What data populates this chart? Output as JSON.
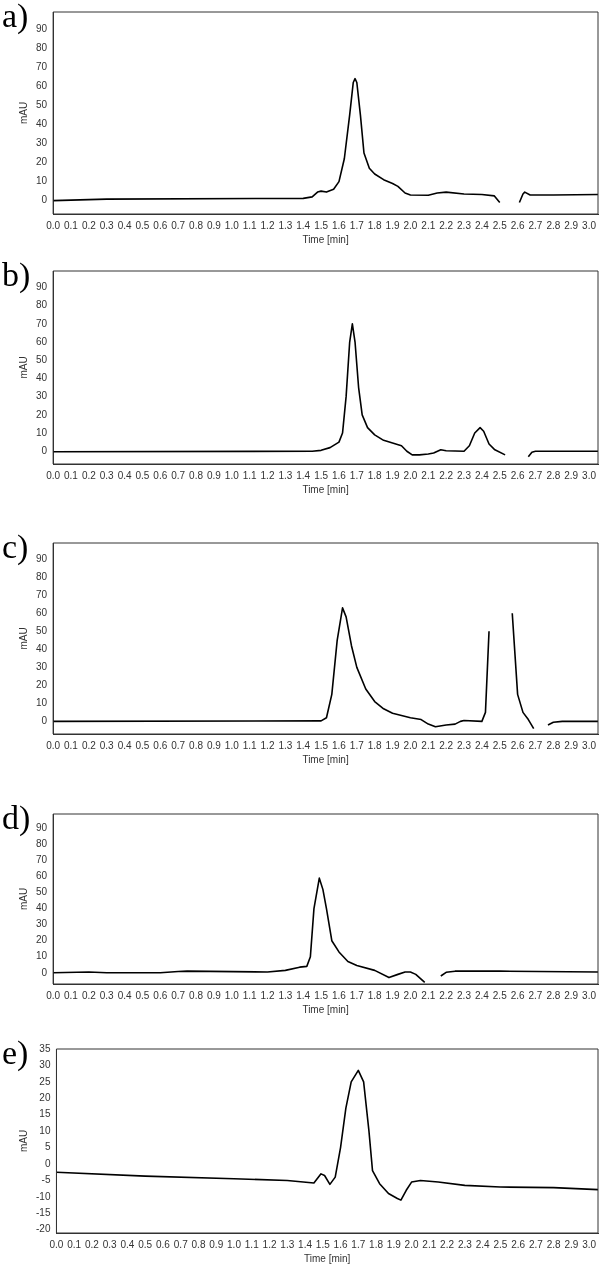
{
  "chart_data": [
    {
      "type": "line",
      "title": "a)",
      "xlabel": "Time [min]",
      "ylabel": "mAU",
      "xlim": [
        0,
        3.05
      ],
      "ylim": [
        -7,
        99
      ],
      "xticks": [
        {
          "value": 0,
          "label": "0.0"
        },
        0.1,
        0.2,
        0.3,
        0.4,
        0.5,
        0.6,
        0.7,
        0.8,
        0.9,
        {
          "value": 1,
          "label": "1.0"
        },
        1.1,
        1.2,
        1.3,
        1.4,
        1.5,
        1.6,
        1.7,
        1.8,
        1.9,
        {
          "value": 2,
          "label": "2.0"
        },
        2.1,
        2.2,
        2.3,
        2.4,
        2.5,
        2.6,
        2.7,
        2.8,
        2.9,
        {
          "value": 3,
          "label": "3.0"
        }
      ],
      "yticks": [
        0,
        10,
        20,
        30,
        40,
        50,
        60,
        70,
        80,
        90
      ],
      "series": [
        {
          "color": "#000000",
          "x": [
            0,
            0.3,
            1.4,
            1.45,
            1.48,
            1.5,
            1.53,
            1.57,
            1.6,
            1.63,
            1.66,
            1.68,
            1.69,
            1.7,
            1.72,
            1.74,
            1.77,
            1.8,
            1.85,
            1.9,
            1.93,
            1.97,
            2.0,
            2.1,
            2.15,
            2.2,
            2.3,
            2.4,
            2.47,
            2.5,
            2.53,
            2.59,
            2.61,
            2.63,
            2.64,
            2.67,
            2.8,
            3.05
          ],
          "values": [
            0,
            0.8,
            1.2,
            2,
            4.5,
            5,
            4.5,
            6,
            10,
            22,
            45,
            62,
            64,
            62,
            45,
            25,
            17,
            14,
            11,
            9,
            7.5,
            4,
            3,
            2.8,
            4,
            4.5,
            3.5,
            3.2,
            2.5,
            -1,
            null,
            null,
            -1,
            3.5,
            4.5,
            3,
            3,
            3.2
          ]
        }
      ]
    },
    {
      "type": "line",
      "title": "b)",
      "xlabel": "Time [min]",
      "ylabel": "mAU",
      "xlim": [
        0,
        3.05
      ],
      "ylim": [
        -7,
        99
      ],
      "xticks": [
        {
          "value": 0,
          "label": "0.0"
        },
        0.1,
        0.2,
        0.3,
        0.4,
        0.5,
        0.6,
        0.7,
        0.8,
        0.9,
        {
          "value": 1,
          "label": "1.0"
        },
        1.1,
        1.2,
        1.3,
        1.4,
        1.5,
        1.6,
        1.7,
        1.8,
        1.9,
        {
          "value": 2,
          "label": "2.0"
        },
        2.1,
        2.2,
        2.3,
        2.4,
        2.5,
        2.6,
        2.7,
        2.8,
        2.9,
        {
          "value": 3,
          "label": "3.0"
        }
      ],
      "yticks": [
        0,
        10,
        20,
        30,
        40,
        50,
        60,
        70,
        80,
        90
      ],
      "series": [
        {
          "color": "#000000",
          "x": [
            0,
            1.45,
            1.5,
            1.55,
            1.6,
            1.62,
            1.64,
            1.66,
            1.675,
            1.69,
            1.71,
            1.73,
            1.76,
            1.8,
            1.85,
            1.9,
            1.95,
            1.98,
            2.01,
            2.05,
            2.1,
            2.13,
            2.17,
            2.2,
            2.3,
            2.33,
            2.36,
            2.39,
            2.41,
            2.44,
            2.47,
            2.53,
            2.56,
            2.64,
            2.66,
            2.68,
            2.7,
            3.05
          ],
          "values": [
            -0.3,
            0,
            0.5,
            2,
            5,
            10,
            30,
            60,
            70,
            60,
            35,
            20,
            13,
            9,
            6,
            4.5,
            3,
            0,
            -2,
            -2,
            -1.5,
            -1,
            0.8,
            0.3,
            0,
            3,
            10,
            13,
            11,
            4,
            1,
            -2,
            null,
            null,
            -3,
            -0.5,
            0,
            0
          ]
        }
      ]
    },
    {
      "type": "line",
      "title": "c)",
      "xlabel": "Time [min]",
      "ylabel": "mAU",
      "xlim": [
        0,
        3.05
      ],
      "ylim": [
        -7,
        99
      ],
      "xticks": [
        {
          "value": 0,
          "label": "0.0"
        },
        0.1,
        0.2,
        0.3,
        0.4,
        0.5,
        0.6,
        0.7,
        0.8,
        0.9,
        {
          "value": 1,
          "label": "1.0"
        },
        1.1,
        1.2,
        1.3,
        1.4,
        1.5,
        1.6,
        1.7,
        1.8,
        1.9,
        {
          "value": 2,
          "label": "2.0"
        },
        2.1,
        2.2,
        2.3,
        2.4,
        2.5,
        2.6,
        2.7,
        2.8,
        2.9,
        {
          "value": 3,
          "label": "3.0"
        }
      ],
      "yticks": [
        0,
        10,
        20,
        30,
        40,
        50,
        60,
        70,
        80,
        90
      ],
      "series": [
        {
          "color": "#000000",
          "x": [
            0,
            1.5,
            1.53,
            1.56,
            1.59,
            1.62,
            1.64,
            1.67,
            1.7,
            1.75,
            1.8,
            1.85,
            1.9,
            2.0,
            2.06,
            2.1,
            2.14,
            2.2,
            2.25,
            2.28,
            2.3,
            2.4,
            2.42,
            2.44,
            2.455,
            2.56,
            2.57,
            2.6,
            2.63,
            2.66,
            2.69,
            2.7,
            2.74,
            2.77,
            2.8,
            2.85,
            3.05
          ],
          "values": [
            0,
            0.3,
            2,
            15,
            45,
            63,
            58,
            42,
            30,
            18,
            11,
            7,
            4.5,
            2,
            1,
            -1.5,
            -3,
            -2,
            -1.5,
            0,
            0.5,
            0,
            5,
            50,
            null,
            null,
            60,
            15,
            5,
            1,
            -4,
            null,
            null,
            -2,
            -0.5,
            0,
            0
          ]
        }
      ]
    },
    {
      "type": "line",
      "title": "d)",
      "xlabel": "Time [min]",
      "ylabel": "mAU",
      "xlim": [
        0,
        3.05
      ],
      "ylim": [
        -7,
        99
      ],
      "xticks": [
        {
          "value": 0,
          "label": "0.0"
        },
        0.1,
        0.2,
        0.3,
        0.4,
        0.5,
        0.6,
        0.7,
        0.8,
        0.9,
        {
          "value": 1,
          "label": "1.0"
        },
        1.1,
        1.2,
        1.3,
        1.4,
        1.5,
        1.6,
        1.7,
        1.8,
        1.9,
        {
          "value": 2,
          "label": "2.0"
        },
        2.1,
        2.2,
        2.3,
        2.4,
        2.5,
        2.6,
        2.7,
        2.8,
        2.9,
        {
          "value": 3,
          "label": "3.0"
        }
      ],
      "yticks": [
        0,
        10,
        20,
        30,
        40,
        50,
        60,
        70,
        80,
        90
      ],
      "series": [
        {
          "color": "#000000",
          "x": [
            0,
            0.2,
            0.3,
            0.6,
            0.7,
            0.75,
            1.2,
            1.3,
            1.38,
            1.42,
            1.44,
            1.46,
            1.49,
            1.51,
            1.53,
            1.56,
            1.6,
            1.65,
            1.7,
            1.8,
            1.88,
            1.93,
            1.97,
            2.0,
            2.03,
            2.08,
            2.09,
            2.14,
            2.17,
            2.2,
            2.25,
            2.5,
            3.05
          ],
          "values": [
            0,
            0.5,
            0,
            0,
            0.8,
            1,
            0.5,
            1.5,
            3.5,
            4,
            10,
            40,
            59,
            52,
            40,
            20,
            13,
            7,
            4.5,
            1.5,
            -3,
            -1,
            0.5,
            0.5,
            -1,
            -6,
            null,
            null,
            -2,
            0.3,
            1,
            1,
            0.5
          ]
        }
      ]
    },
    {
      "type": "line",
      "title": "e)",
      "xlabel": "Time [min]",
      "ylabel": "mAU",
      "xlim": [
        0,
        3.05
      ],
      "ylim": [
        -21,
        35
      ],
      "xticks": [
        {
          "value": 0,
          "label": "0.0"
        },
        0.1,
        0.2,
        0.3,
        0.4,
        0.5,
        0.6,
        0.7,
        0.8,
        0.9,
        {
          "value": 1,
          "label": "1.0"
        },
        1.1,
        1.2,
        1.3,
        1.4,
        1.5,
        1.6,
        1.7,
        1.8,
        1.9,
        {
          "value": 2,
          "label": "2.0"
        },
        2.1,
        2.2,
        2.3,
        2.4,
        2.5,
        2.6,
        2.7,
        2.8,
        2.9,
        {
          "value": 3,
          "label": "3.0"
        }
      ],
      "yticks": [
        -20,
        -15,
        -10,
        -5,
        0,
        5,
        10,
        15,
        20,
        25,
        30,
        35
      ],
      "series": [
        {
          "color": "#000000",
          "x": [
            0,
            0.5,
            1.0,
            1.3,
            1.45,
            1.49,
            1.51,
            1.54,
            1.57,
            1.6,
            1.63,
            1.66,
            1.7,
            1.73,
            1.76,
            1.78,
            1.82,
            1.87,
            1.92,
            1.94,
            1.97,
            2.0,
            2.05,
            2.15,
            2.3,
            2.5,
            2.8,
            3.05
          ],
          "values": [
            -2.5,
            -3.7,
            -4.5,
            -5,
            -5.8,
            -3,
            -3.5,
            -6.2,
            -4,
            5,
            17,
            25,
            28.5,
            25,
            10,
            -2,
            -6,
            -9,
            -10.5,
            -11,
            -8,
            -5.5,
            -5,
            -5.5,
            -6.5,
            -7,
            -7.2,
            -7.8
          ]
        }
      ]
    }
  ]
}
